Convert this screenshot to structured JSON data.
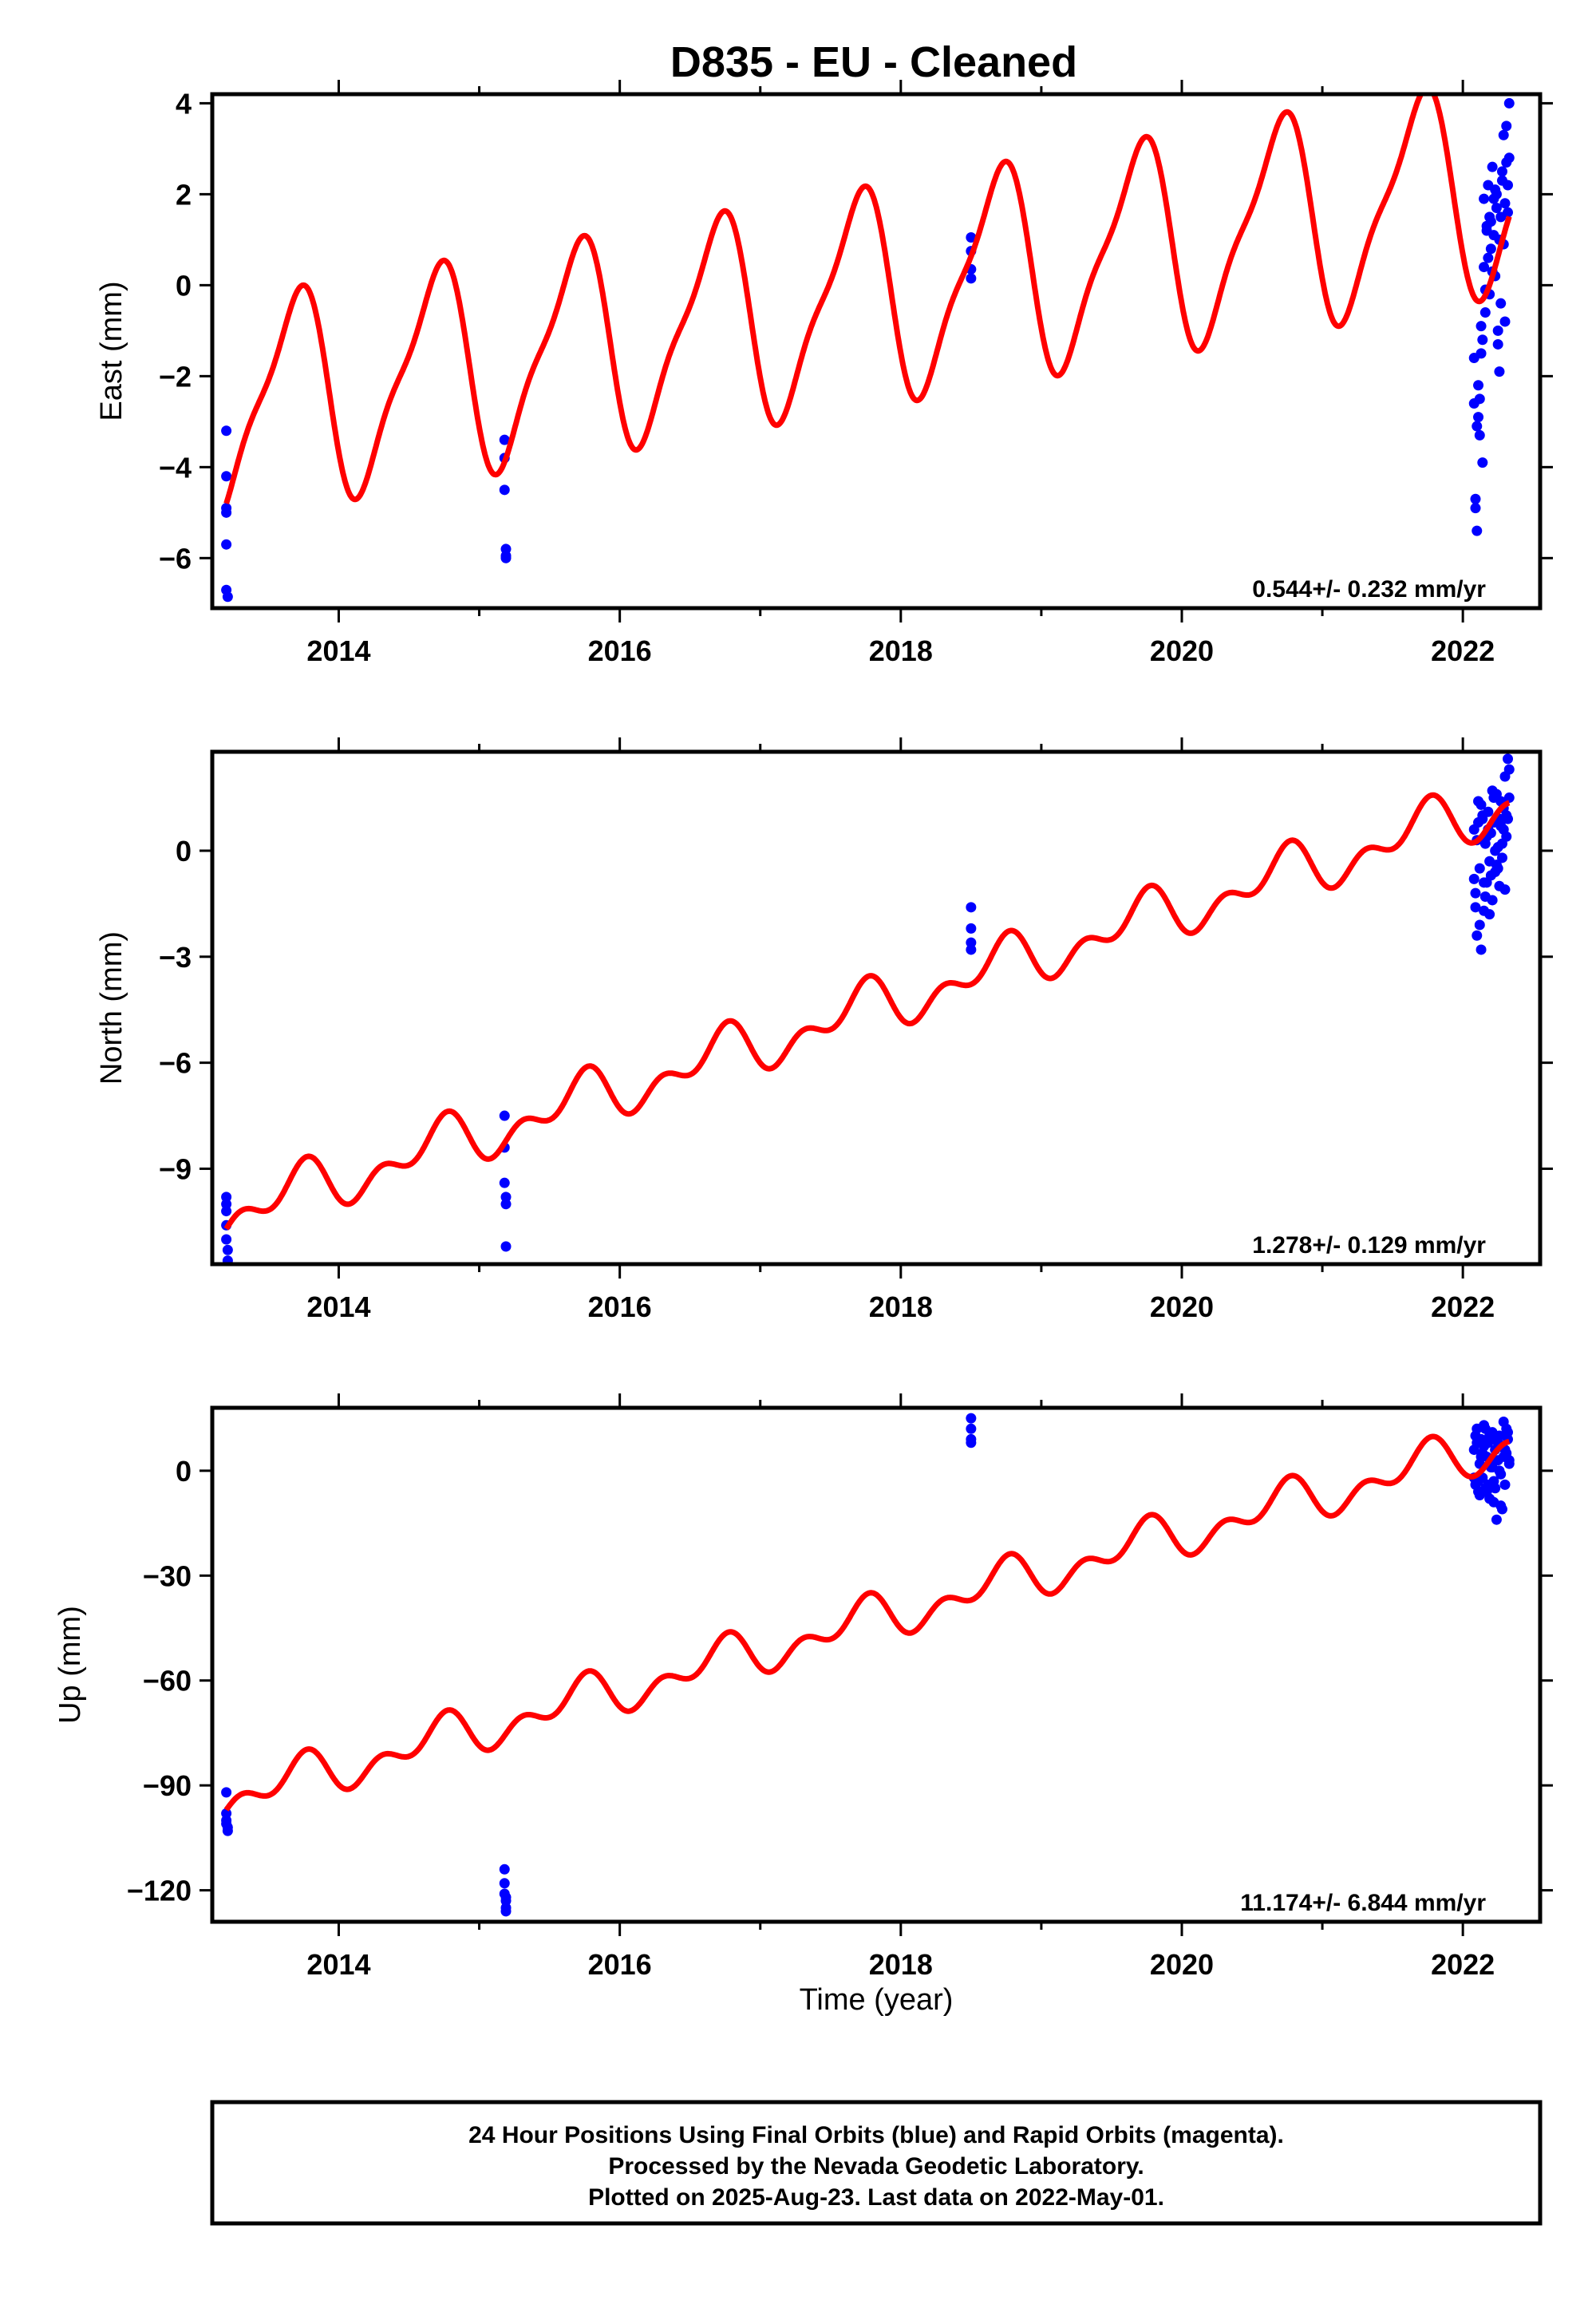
{
  "figure": {
    "title": "D835  - EU - Cleaned",
    "xlabel": "Time (year)",
    "footer": [
      "24 Hour Positions Using Final Orbits (blue) and Rapid Orbits (magenta).",
      "Processed by the Nevada Geodetic Laboratory.",
      "Plotted on 2025-Aug-23. Last data on 2022-May-01."
    ],
    "colors": {
      "data": "#0000ff",
      "model": "#ff0000",
      "frame": "#000000"
    }
  },
  "chart_data": [
    {
      "type": "scatter",
      "ylabel": "East (mm)",
      "xlim": [
        2013.1,
        2022.55
      ],
      "ylim": [
        -7.1,
        4.2
      ],
      "xticks": [
        2014,
        2016,
        2018,
        2020,
        2022
      ],
      "yticks": [
        -6,
        -4,
        -2,
        0,
        2,
        4
      ],
      "rate_text": "0.544+/- 0.232 mm/yr",
      "model": {
        "name": "",
        "ref_year": 2013.2,
        "intercept": -4.8,
        "rate": 0.544,
        "annual_amp": 2.2,
        "annual_phase": -1.45,
        "semiannual_amp": 0.6,
        "semiannual_phase": 0.2,
        "x_range": [
          2013.2,
          2022.33
        ],
        "clip_y": [
          -7.1,
          4.2
        ]
      },
      "series": [
        {
          "name": "",
          "segment": "2013",
          "x": [
            2013.2,
            2013.2,
            2013.2,
            2013.2,
            2013.2,
            2013.2,
            2013.21
          ],
          "y": [
            -3.2,
            -4.2,
            -4.9,
            -5.0,
            -5.7,
            -6.7,
            -6.85
          ]
        },
        {
          "name": "",
          "segment": "2015",
          "x": [
            2015.18,
            2015.18,
            2015.18,
            2015.19,
            2015.19,
            2015.19
          ],
          "y": [
            -3.4,
            -3.8,
            -4.5,
            -5.8,
            -5.95,
            -6.0
          ]
        },
        {
          "name": "",
          "segment": "2018",
          "x": [
            2018.5,
            2018.5,
            2018.5,
            2018.5
          ],
          "y": [
            1.05,
            0.75,
            0.35,
            0.15
          ]
        },
        {
          "name": "",
          "segment": "2022",
          "x": [
            2022.08,
            2022.09,
            2022.1,
            2022.11,
            2022.12,
            2022.13,
            2022.14,
            2022.15,
            2022.16,
            2022.17,
            2022.18,
            2022.19,
            2022.2,
            2022.21,
            2022.22,
            2022.23,
            2022.24,
            2022.25,
            2022.26,
            2022.27,
            2022.28,
            2022.29,
            2022.3,
            2022.31,
            2022.32,
            2022.33,
            2022.08,
            2022.1,
            2022.12,
            2022.14,
            2022.16,
            2022.18,
            2022.2,
            2022.22,
            2022.24,
            2022.26,
            2022.28,
            2022.3,
            2022.32,
            2022.09,
            2022.11,
            2022.13,
            2022.15,
            2022.17,
            2022.19,
            2022.21,
            2022.23,
            2022.25,
            2022.27,
            2022.29,
            2022.31,
            2022.33
          ],
          "y": [
            -2.6,
            -4.7,
            -5.4,
            -2.2,
            -3.3,
            -1.5,
            -3.9,
            0.4,
            -0.6,
            1.2,
            2.2,
            1.5,
            0.8,
            2.6,
            1.9,
            0.2,
            1.7,
            -1.0,
            1.0,
            -0.4,
            2.3,
            3.3,
            1.8,
            2.7,
            2.2,
            4.0,
            -1.6,
            -3.1,
            -2.5,
            -1.2,
            -0.1,
            0.6,
            1.4,
            1.1,
            2.0,
            -1.9,
            2.5,
            -0.8,
            1.6,
            -4.9,
            -2.9,
            -0.9,
            1.9,
            1.3,
            -0.2,
            0.3,
            2.1,
            -1.3,
            1.5,
            0.9,
            3.5,
            2.8
          ]
        }
      ]
    },
    {
      "type": "scatter",
      "ylabel": "North (mm)",
      "xlim": [
        2013.1,
        2022.55
      ],
      "ylim": [
        -11.7,
        2.8
      ],
      "xticks": [
        2014,
        2016,
        2018,
        2020,
        2022
      ],
      "yticks": [
        -9,
        -6,
        -3,
        0
      ],
      "rate_text": "1.278+/- 0.129 mm/yr",
      "model": {
        "name": "",
        "ref_year": 2013.2,
        "intercept": -10.7,
        "rate": 1.278,
        "annual_amp": 0.55,
        "annual_phase": -1.6,
        "semiannual_amp": 0.45,
        "semiannual_phase": 0.4,
        "x_range": [
          2013.2,
          2022.33
        ],
        "clip_y": [
          -11.7,
          2.8
        ]
      },
      "series": [
        {
          "name": "",
          "segment": "2013",
          "x": [
            2013.2,
            2013.2,
            2013.2,
            2013.2,
            2013.2,
            2013.21,
            2013.21
          ],
          "y": [
            -9.8,
            -10.0,
            -10.2,
            -10.6,
            -11.0,
            -11.3,
            -11.6
          ]
        },
        {
          "name": "",
          "segment": "2015",
          "x": [
            2015.18,
            2015.18,
            2015.18,
            2015.19,
            2015.19,
            2015.19
          ],
          "y": [
            -7.5,
            -8.4,
            -9.4,
            -9.8,
            -10.0,
            -11.2
          ]
        },
        {
          "name": "",
          "segment": "2018",
          "x": [
            2018.5,
            2018.5,
            2018.5,
            2018.5
          ],
          "y": [
            -1.6,
            -2.2,
            -2.6,
            -2.8
          ]
        },
        {
          "name": "",
          "segment": "2022",
          "x": [
            2022.08,
            2022.09,
            2022.1,
            2022.11,
            2022.12,
            2022.13,
            2022.14,
            2022.15,
            2022.16,
            2022.17,
            2022.18,
            2022.19,
            2022.2,
            2022.21,
            2022.22,
            2022.23,
            2022.24,
            2022.25,
            2022.26,
            2022.27,
            2022.28,
            2022.29,
            2022.3,
            2022.31,
            2022.32,
            2022.33,
            2022.08,
            2022.1,
            2022.12,
            2022.14,
            2022.16,
            2022.18,
            2022.2,
            2022.22,
            2022.24,
            2022.26,
            2022.28,
            2022.3,
            2022.32,
            2022.09,
            2022.11,
            2022.13,
            2022.15,
            2022.17,
            2022.19,
            2022.21,
            2022.23,
            2022.25,
            2022.27,
            2022.29,
            2022.31,
            2022.33
          ],
          "y": [
            0.6,
            -1.2,
            -2.4,
            1.4,
            -0.5,
            -2.8,
            0.9,
            -1.7,
            0.2,
            -0.9,
            1.1,
            -0.3,
            0.5,
            -1.4,
            0.8,
            -0.6,
            1.6,
            0.1,
            -1.0,
            0.7,
            -0.2,
            1.2,
            2.1,
            0.4,
            2.6,
            1.5,
            -0.8,
            0.3,
            -2.1,
            1.0,
            -1.3,
            0.6,
            -0.7,
            1.5,
            -0.4,
            0.9,
            0.2,
            -1.1,
            0.9,
            -1.6,
            0.8,
            1.3,
            -0.9,
            0.4,
            -1.8,
            1.7,
            0.0,
            -0.5,
            1.4,
            0.6,
            1.0,
            2.3
          ]
        }
      ]
    },
    {
      "type": "scatter",
      "ylabel": "Up (mm)",
      "xlim": [
        2013.1,
        2022.55
      ],
      "ylim": [
        -129,
        18
      ],
      "xticks": [
        2014,
        2016,
        2018,
        2020,
        2022
      ],
      "yticks": [
        -120,
        -90,
        -60,
        -30,
        0
      ],
      "rate_text": "11.174+/- 6.844 mm/yr",
      "model": {
        "name": "",
        "ref_year": 2013.2,
        "intercept": -97,
        "rate": 11.174,
        "annual_amp": 4.5,
        "annual_phase": -1.6,
        "semiannual_amp": 4.0,
        "semiannual_phase": 0.4,
        "x_range": [
          2013.2,
          2022.33
        ],
        "clip_y": [
          -129,
          18
        ]
      },
      "series": [
        {
          "name": "",
          "segment": "2013",
          "x": [
            2013.2,
            2013.2,
            2013.2,
            2013.2,
            2013.21,
            2013.21
          ],
          "y": [
            -92,
            -98,
            -100,
            -101,
            -102,
            -103
          ]
        },
        {
          "name": "",
          "segment": "2015",
          "x": [
            2015.18,
            2015.18,
            2015.18,
            2015.19,
            2015.19,
            2015.19,
            2015.19
          ],
          "y": [
            -114,
            -118,
            -121,
            -122,
            -123,
            -125,
            -126
          ]
        },
        {
          "name": "",
          "segment": "2018",
          "x": [
            2018.5,
            2018.5,
            2018.5,
            2018.5
          ],
          "y": [
            15,
            12,
            9,
            8
          ]
        },
        {
          "name": "",
          "segment": "2022",
          "x": [
            2022.08,
            2022.09,
            2022.1,
            2022.11,
            2022.12,
            2022.13,
            2022.14,
            2022.15,
            2022.16,
            2022.17,
            2022.18,
            2022.19,
            2022.2,
            2022.21,
            2022.22,
            2022.23,
            2022.24,
            2022.25,
            2022.26,
            2022.27,
            2022.28,
            2022.29,
            2022.3,
            2022.31,
            2022.32,
            2022.33,
            2022.08,
            2022.1,
            2022.12,
            2022.14,
            2022.16,
            2022.18,
            2022.2,
            2022.22,
            2022.24,
            2022.26,
            2022.28,
            2022.3,
            2022.32,
            2022.09,
            2022.11,
            2022.13,
            2022.15,
            2022.17,
            2022.19,
            2022.21,
            2022.23,
            2022.25,
            2022.27,
            2022.29,
            2022.31,
            2022.33
          ],
          "y": [
            6,
            -4,
            12,
            -6,
            2,
            9,
            -2,
            13,
            -5,
            4,
            8,
            -8,
            1,
            11,
            -3,
            6,
            -14,
            3,
            10,
            -1,
            7,
            14,
            -4,
            5,
            9,
            2,
            -2,
            8,
            -7,
            5,
            12,
            -4,
            3,
            -9,
            9,
            0,
            -11,
            6,
            11,
            10,
            -3,
            4,
            7,
            -6,
            10,
            1,
            -5,
            8,
            -10,
            4,
            12,
            3
          ]
        }
      ]
    }
  ]
}
